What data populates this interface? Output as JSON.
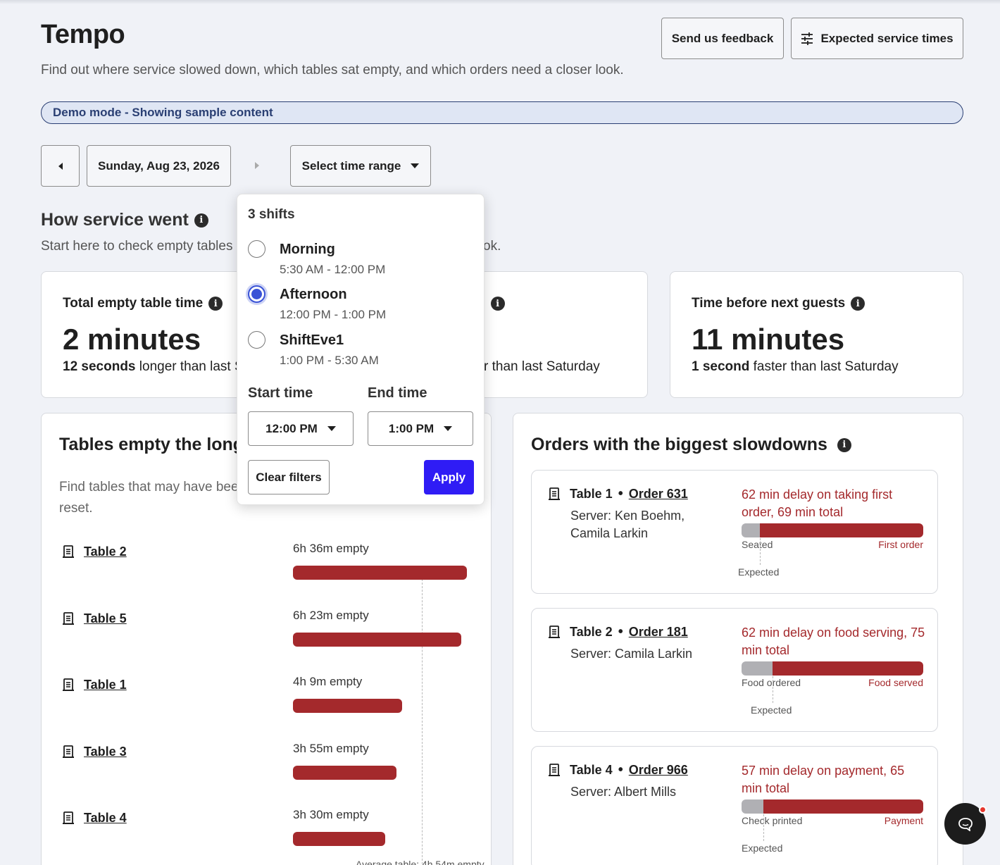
{
  "header": {
    "title": "Tempo",
    "subtitle": "Find out where service slowed down, which tables sat empty, and which orders need a closer look.",
    "feedback_label": "Send us feedback",
    "expected_times_label": "Expected service times"
  },
  "banner": {
    "text": "Demo mode - Showing sample content"
  },
  "date_nav": {
    "date": "Sunday, Aug 23, 2026",
    "time_range_label": "Select time range"
  },
  "overview": {
    "title": "How service went",
    "desc_left": "Start here to check empty tables",
    "desc_right": "ok.",
    "metrics": [
      {
        "label": "Total empty table time",
        "value": "2 minutes",
        "delta": "12 seconds",
        "compare": " longer than last S"
      },
      {
        "label": "n",
        "compare": "r than last Saturday"
      },
      {
        "label": "Time before next guests",
        "value": "11 minutes",
        "delta": "1 second",
        "compare": " faster than last Saturday"
      }
    ]
  },
  "tables_panel": {
    "title": "Tables empty the longe",
    "desc": "Find tables that may have bee",
    "desc_line2": "reset.",
    "rows": [
      {
        "name": "Table 2",
        "empty": "6h 36m empty",
        "minutes": 396
      },
      {
        "name": "Table 5",
        "empty": "6h 23m empty",
        "minutes": 383
      },
      {
        "name": "Table 1",
        "empty": "4h 9m empty",
        "minutes": 249
      },
      {
        "name": "Table 3",
        "empty": "3h 55m empty",
        "minutes": 235
      },
      {
        "name": "Table 4",
        "empty": "3h 30m empty",
        "minutes": 210
      }
    ],
    "average_label": "Average table: 4h 54m empty"
  },
  "orders_panel": {
    "title": "Orders with the biggest slowdowns",
    "orders": [
      {
        "table": "Table 1",
        "order": "Order 631",
        "server": "Server: Ken Boehm, Camila Larkin",
        "delay": "62 min delay on taking first order, 69 min total",
        "start_label": "Seated",
        "end_label": "First order",
        "expected_label": "Expected",
        "expected_fraction": 0.1
      },
      {
        "table": "Table 2",
        "order": "Order 181",
        "server": "Server: Camila Larkin",
        "delay": "62 min delay on food serving, 75 min total",
        "start_label": "Food ordered",
        "end_label": "Food served",
        "expected_label": "Expected",
        "expected_fraction": 0.17
      },
      {
        "table": "Table 4",
        "order": "Order 966",
        "server": "Server: Albert Mills",
        "delay": "57 min delay on payment, 65 min total",
        "start_label": "Check printed",
        "end_label": "Payment",
        "expected_label": "Expected",
        "expected_fraction": 0.12
      }
    ]
  },
  "time_dropdown": {
    "heading": "3 shifts",
    "shifts": [
      {
        "name": "Morning",
        "time": "5:30 AM - 12:00 PM",
        "selected": false
      },
      {
        "name": "Afternoon",
        "time": "12:00 PM - 1:00 PM",
        "selected": true
      },
      {
        "name": "ShiftEve1",
        "time": "1:00 PM - 5:30 AM",
        "selected": false
      }
    ],
    "start_label": "Start time",
    "end_label": "End time",
    "start_value": "12:00 PM",
    "end_value": "1:00 PM",
    "clear_label": "Clear filters",
    "apply_label": "Apply"
  },
  "colors": {
    "accent": "#2f1cf5",
    "delay_red": "#a4292c",
    "radio_blue": "#3a53d6",
    "banner_text": "#2a3f73"
  }
}
